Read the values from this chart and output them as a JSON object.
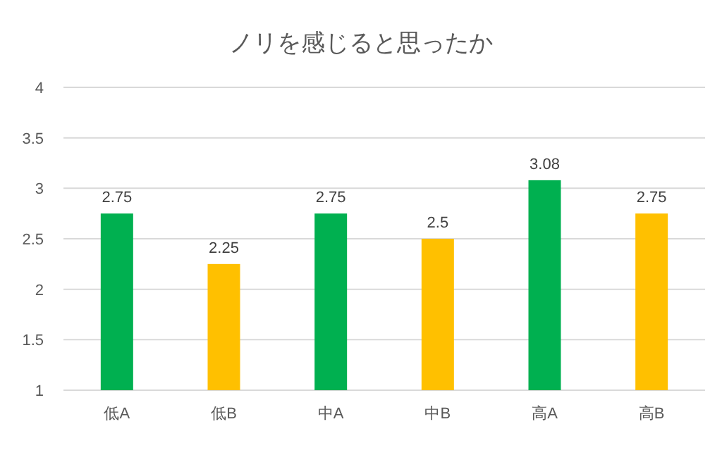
{
  "chart_data": {
    "type": "bar",
    "title": "ノリを感じると思ったか",
    "categories": [
      "低A",
      "低B",
      "中A",
      "中B",
      "高A",
      "高B"
    ],
    "values": [
      2.75,
      2.25,
      2.75,
      2.5,
      3.08,
      2.75
    ],
    "colors": [
      "#00b050",
      "#ffc000",
      "#00b050",
      "#ffc000",
      "#00b050",
      "#ffc000"
    ],
    "ylim": [
      1,
      4
    ],
    "yticks": [
      1,
      1.5,
      2,
      2.5,
      3,
      3.5,
      4
    ],
    "grid": "y",
    "data_labels": true
  }
}
